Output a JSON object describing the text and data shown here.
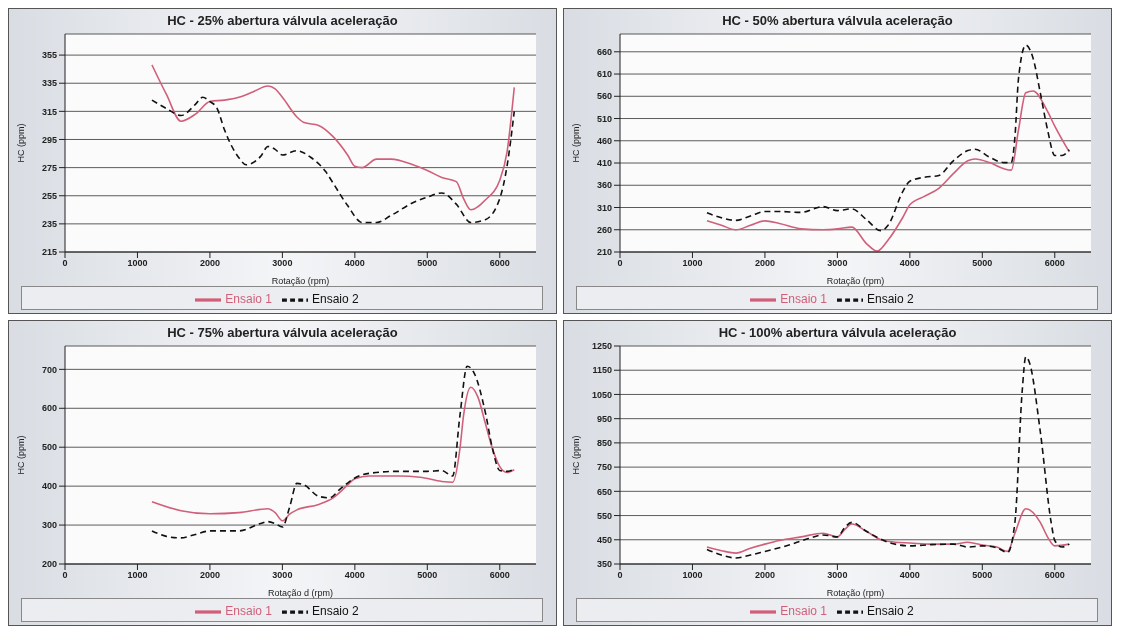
{
  "chart_data": [
    {
      "type": "line",
      "title": "HC - 25% abertura válvula aceleração",
      "xlabel": "Rotação (rpm)",
      "ylabel": "HC (ppm)",
      "xlim": [
        0,
        6500
      ],
      "xticks": [
        0,
        1000,
        2000,
        3000,
        4000,
        5000,
        6000
      ],
      "ylim": [
        215,
        370
      ],
      "yticks": [
        215,
        235,
        255,
        275,
        295,
        315,
        335,
        355
      ],
      "grid": "y",
      "legend": "bottom",
      "marker": "none",
      "series": [
        {
          "name": "Ensaio 1",
          "color": "#d0607a",
          "line_style": "solid",
          "x": [
            1200,
            1400,
            1600,
            1800,
            2000,
            2200,
            2400,
            2600,
            2800,
            2900,
            3000,
            3200,
            3300,
            3500,
            3700,
            3900,
            4000,
            4100,
            4300,
            4500,
            4800,
            5000,
            5200,
            5400,
            5500,
            5600,
            5800,
            6000,
            6100,
            6200
          ],
          "values": [
            348,
            327,
            308,
            313,
            322,
            323,
            325,
            329,
            333,
            331,
            325,
            311,
            307,
            305,
            297,
            284,
            276,
            275,
            281,
            281,
            277,
            273,
            268,
            265,
            253,
            245,
            252,
            266,
            286,
            332
          ]
        },
        {
          "name": "Ensaio 2",
          "color": "#111111",
          "line_style": "dashed",
          "x": [
            1200,
            1400,
            1600,
            1800,
            1900,
            2000,
            2100,
            2200,
            2400,
            2500,
            2700,
            2800,
            2900,
            3000,
            3200,
            3400,
            3600,
            3700,
            3900,
            4100,
            4300,
            4500,
            4800,
            5000,
            5200,
            5400,
            5600,
            5800,
            6000,
            6100,
            6200
          ],
          "values": [
            323,
            317,
            312,
            320,
            325,
            322,
            317,
            302,
            282,
            277,
            283,
            290,
            288,
            284,
            287,
            282,
            272,
            264,
            248,
            236,
            236,
            241,
            250,
            254,
            257,
            249,
            236,
            238,
            253,
            276,
            315
          ]
        }
      ]
    },
    {
      "type": "line",
      "title": "HC - 50% abertura válvula aceleração",
      "xlabel": "Rotação (rpm)",
      "ylabel": "HC (ppm)",
      "xlim": [
        0,
        6500
      ],
      "xticks": [
        0,
        1000,
        2000,
        3000,
        4000,
        5000,
        6000
      ],
      "ylim": [
        210,
        700
      ],
      "yticks": [
        210,
        260,
        310,
        360,
        410,
        460,
        510,
        560,
        610,
        660
      ],
      "grid": "y",
      "legend": "bottom",
      "marker": "none",
      "series": [
        {
          "name": "Ensaio 1",
          "color": "#d0607a",
          "line_style": "solid",
          "x": [
            1200,
            1400,
            1600,
            1800,
            2000,
            2200,
            2500,
            2800,
            3000,
            3200,
            3400,
            3550,
            3700,
            3900,
            4000,
            4200,
            4400,
            4600,
            4800,
            4900,
            5100,
            5300,
            5400,
            5500,
            5600,
            5700,
            5900,
            6000,
            6200
          ],
          "values": [
            280,
            270,
            260,
            270,
            280,
            274,
            262,
            260,
            262,
            266,
            229,
            212,
            237,
            287,
            316,
            335,
            353,
            386,
            415,
            419,
            411,
            397,
            394,
            485,
            568,
            572,
            526,
            493,
            435
          ]
        },
        {
          "name": "Ensaio 2",
          "color": "#111111",
          "line_style": "dashed",
          "x": [
            1200,
            1400,
            1600,
            1800,
            2000,
            2200,
            2500,
            2800,
            3000,
            3200,
            3400,
            3600,
            3700,
            3900,
            4000,
            4200,
            4400,
            4600,
            4800,
            4900,
            5100,
            5300,
            5400,
            5450,
            5500,
            5600,
            5700,
            5800,
            5900,
            6000,
            6100,
            6200
          ],
          "values": [
            298,
            287,
            281,
            291,
            301,
            301,
            299,
            312,
            303,
            307,
            283,
            258,
            270,
            345,
            369,
            378,
            382,
            415,
            438,
            441,
            423,
            411,
            411,
            468,
            601,
            675,
            646,
            568,
            485,
            427,
            427,
            440
          ]
        }
      ]
    },
    {
      "type": "line",
      "title": "HC - 75% abertura válvula aceleração",
      "xlabel": "Rotação d (rpm)",
      "ylabel": "HC (ppm)",
      "xlim": [
        0,
        6500
      ],
      "xticks": [
        0,
        1000,
        2000,
        3000,
        4000,
        5000,
        6000
      ],
      "ylim": [
        200,
        760
      ],
      "yticks": [
        200,
        300,
        400,
        500,
        600,
        700
      ],
      "grid": "y",
      "legend": "bottom",
      "marker": "none",
      "series": [
        {
          "name": "Ensaio 1",
          "color": "#d0607a",
          "line_style": "solid",
          "x": [
            1200,
            1600,
            2000,
            2400,
            2800,
            2900,
            3000,
            3100,
            3200,
            3500,
            3700,
            3900,
            4000,
            4200,
            4600,
            4900,
            5200,
            5350,
            5450,
            5500,
            5600,
            5700,
            5800,
            5900,
            6000,
            6100,
            6200
          ],
          "values": [
            360,
            337,
            329,
            332,
            342,
            332,
            311,
            328,
            339,
            353,
            370,
            403,
            419,
            426,
            426,
            423,
            412,
            410,
            496,
            581,
            654,
            628,
            562,
            496,
            450,
            435,
            442
          ]
        },
        {
          "name": "Ensaio 2",
          "color": "#111111",
          "line_style": "dashed",
          "x": [
            1200,
            1400,
            1600,
            1800,
            2000,
            2400,
            2700,
            2800,
            2900,
            3000,
            3100,
            3200,
            3300,
            3500,
            3650,
            3800,
            4000,
            4200,
            4600,
            5000,
            5200,
            5350,
            5450,
            5550,
            5650,
            5800,
            5900,
            6000,
            6100,
            6200
          ],
          "values": [
            285,
            271,
            267,
            276,
            285,
            285,
            304,
            309,
            304,
            295,
            346,
            407,
            403,
            374,
            370,
            393,
            421,
            433,
            438,
            438,
            440,
            426,
            581,
            708,
            689,
            590,
            496,
            440,
            438,
            444
          ]
        }
      ]
    },
    {
      "type": "line",
      "title": "HC - 100% abertura válvula aceleração",
      "xlabel": "Rotação (rpm)",
      "ylabel": "HC (ppm)",
      "xlim": [
        0,
        6500
      ],
      "xticks": [
        0,
        1000,
        2000,
        3000,
        4000,
        5000,
        6000
      ],
      "ylim": [
        350,
        1250
      ],
      "yticks": [
        350,
        450,
        550,
        650,
        750,
        850,
        950,
        1050,
        1150,
        1250
      ],
      "grid": "y",
      "legend": "bottom",
      "marker": "none",
      "series": [
        {
          "name": "Ensaio 1",
          "color": "#d0607a",
          "line_style": "solid",
          "x": [
            1200,
            1400,
            1600,
            1800,
            2000,
            2200,
            2500,
            2800,
            3000,
            3100,
            3200,
            3400,
            3600,
            3800,
            4000,
            4300,
            4600,
            4800,
            5000,
            5200,
            5350,
            5450,
            5600,
            5800,
            5900,
            6000,
            6200
          ],
          "values": [
            420,
            405,
            395,
            415,
            432,
            447,
            462,
            477,
            462,
            492,
            515,
            485,
            450,
            440,
            437,
            432,
            432,
            440,
            428,
            420,
            402,
            477,
            578,
            522,
            462,
            425,
            432
          ]
        },
        {
          "name": "Ensaio 2",
          "color": "#111111",
          "line_style": "dashed",
          "x": [
            1200,
            1400,
            1600,
            1800,
            2000,
            2300,
            2600,
            2800,
            3000,
            3100,
            3200,
            3400,
            3700,
            4000,
            4300,
            4600,
            4800,
            5000,
            5200,
            5350,
            5450,
            5550,
            5600,
            5650,
            5800,
            5950,
            6000,
            6100,
            6200
          ],
          "values": [
            410,
            387,
            375,
            387,
            402,
            425,
            455,
            470,
            462,
            500,
            522,
            485,
            440,
            425,
            430,
            432,
            420,
            425,
            417,
            398,
            522,
            1062,
            1205,
            1182,
            897,
            522,
            447,
            420,
            432
          ]
        }
      ]
    }
  ]
}
